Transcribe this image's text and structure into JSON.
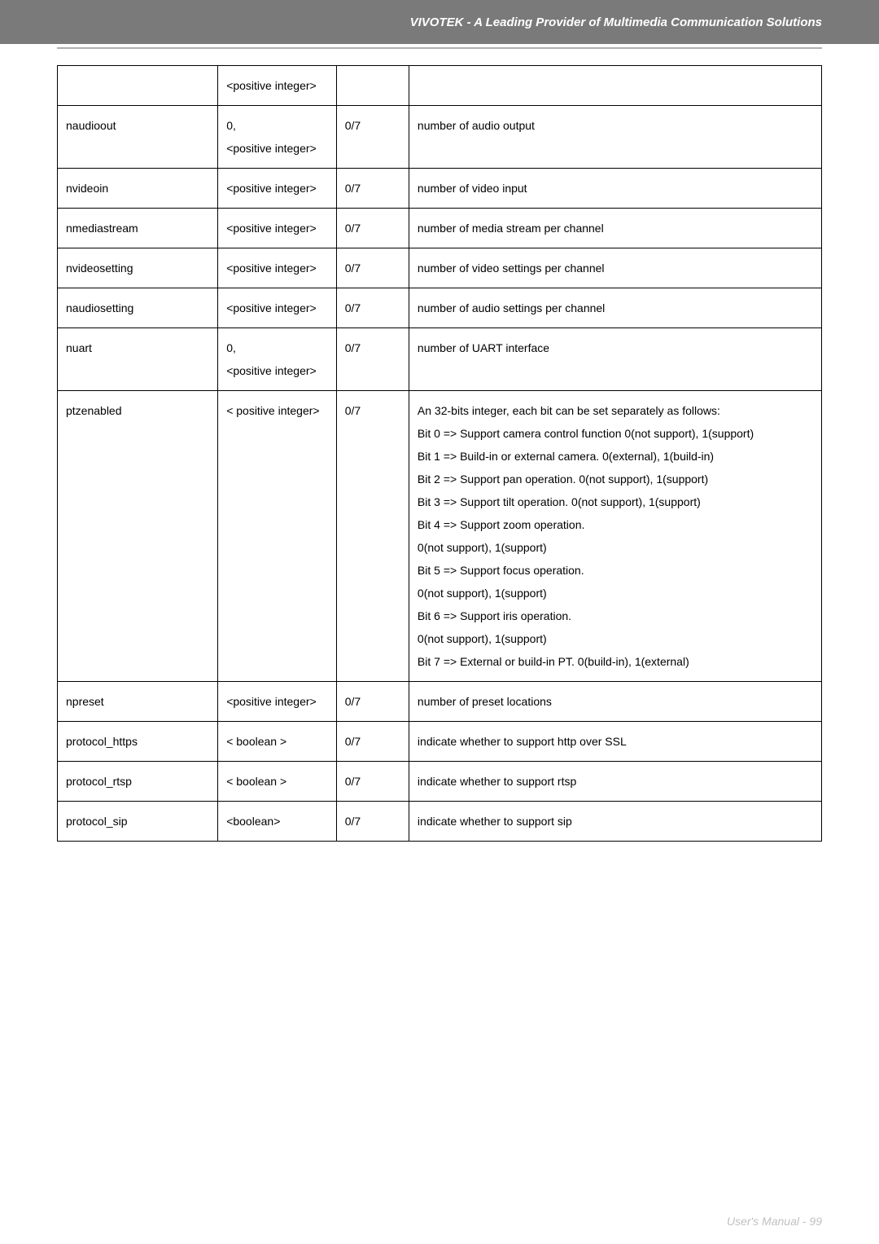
{
  "header": {
    "title": "VIVOTEK - A Leading Provider of Multimedia Communication Solutions"
  },
  "footer": {
    "text": "User's Manual - 99"
  },
  "table": {
    "rows": [
      {
        "name": "",
        "value": "<positive integer>",
        "security": "",
        "desc": ""
      },
      {
        "name": "naudioout",
        "value": "0,\n<positive integer>",
        "security": "0/7",
        "desc": "number of audio output"
      },
      {
        "name": "nvideoin",
        "value": "<positive integer>",
        "security": "0/7",
        "desc": "number of video input"
      },
      {
        "name": "nmediastream",
        "value": "<positive integer>",
        "security": "0/7",
        "desc": "number of media stream per channel"
      },
      {
        "name": "nvideosetting",
        "value": "<positive integer>",
        "security": "0/7",
        "desc": "number of video settings per channel"
      },
      {
        "name": "naudiosetting",
        "value": "<positive integer>",
        "security": "0/7",
        "desc": "number of audio settings per channel"
      },
      {
        "name": "nuart",
        "value": "0,\n<positive integer>",
        "security": "0/7",
        "desc": "number of UART interface"
      },
      {
        "name": "ptzenabled",
        "value": "< positive integer>",
        "security": "0/7",
        "desc": "An 32-bits integer, each bit can be set separately as follows:\nBit 0 => Support camera control function 0(not support), 1(support)\nBit 1 => Build-in or external camera. 0(external), 1(build-in)\nBit 2 => Support pan operation. 0(not support), 1(support)\nBit 3 => Support tilt operation. 0(not support), 1(support)\nBit 4 => Support zoom operation.\n0(not support), 1(support)\nBit 5 => Support focus operation.\n0(not support), 1(support)\nBit 6 => Support iris operation.\n0(not support), 1(support)\nBit 7 => External or build-in PT. 0(build-in), 1(external)"
      },
      {
        "name": "npreset",
        "value": "<positive integer>",
        "security": "0/7",
        "desc": "number of preset locations"
      },
      {
        "name": "protocol_https",
        "value": "< boolean >",
        "security": "0/7",
        "desc": "indicate whether to support http over SSL"
      },
      {
        "name": "protocol_rtsp",
        "value": "< boolean >",
        "security": "0/7",
        "desc": "indicate whether to support rtsp"
      },
      {
        "name": "protocol_sip",
        "value": "<boolean>",
        "security": "0/7",
        "desc": "indicate whether to support sip"
      }
    ]
  }
}
